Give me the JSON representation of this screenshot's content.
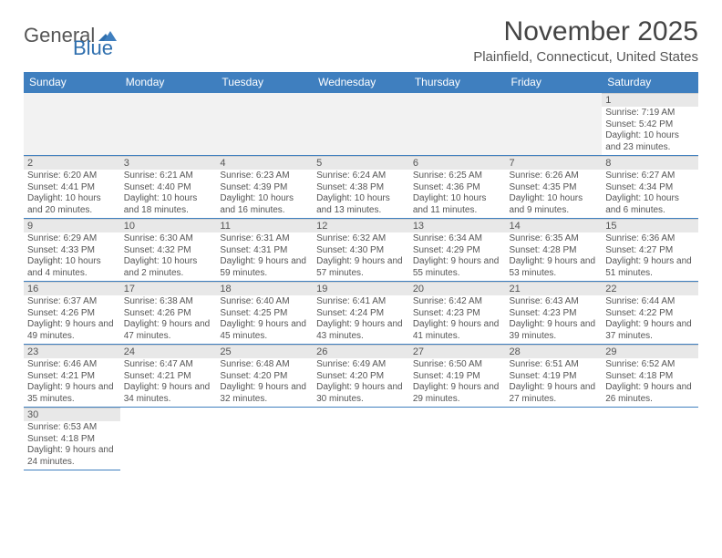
{
  "logo": {
    "text1": "General",
    "text2": "Blue"
  },
  "title": "November 2025",
  "location": "Plainfield, Connecticut, United States",
  "colors": {
    "header_bg": "#3f7fbf",
    "header_text": "#ffffff",
    "rule": "#3f7fbf",
    "daynum_bg": "#e8e8e8",
    "text": "#555555"
  },
  "day_names": [
    "Sunday",
    "Monday",
    "Tuesday",
    "Wednesday",
    "Thursday",
    "Friday",
    "Saturday"
  ],
  "weeks": [
    [
      null,
      null,
      null,
      null,
      null,
      null,
      {
        "n": "1",
        "sr": "Sunrise: 7:19 AM",
        "ss": "Sunset: 5:42 PM",
        "dl": "Daylight: 10 hours and 23 minutes."
      }
    ],
    [
      {
        "n": "2",
        "sr": "Sunrise: 6:20 AM",
        "ss": "Sunset: 4:41 PM",
        "dl": "Daylight: 10 hours and 20 minutes."
      },
      {
        "n": "3",
        "sr": "Sunrise: 6:21 AM",
        "ss": "Sunset: 4:40 PM",
        "dl": "Daylight: 10 hours and 18 minutes."
      },
      {
        "n": "4",
        "sr": "Sunrise: 6:23 AM",
        "ss": "Sunset: 4:39 PM",
        "dl": "Daylight: 10 hours and 16 minutes."
      },
      {
        "n": "5",
        "sr": "Sunrise: 6:24 AM",
        "ss": "Sunset: 4:38 PM",
        "dl": "Daylight: 10 hours and 13 minutes."
      },
      {
        "n": "6",
        "sr": "Sunrise: 6:25 AM",
        "ss": "Sunset: 4:36 PM",
        "dl": "Daylight: 10 hours and 11 minutes."
      },
      {
        "n": "7",
        "sr": "Sunrise: 6:26 AM",
        "ss": "Sunset: 4:35 PM",
        "dl": "Daylight: 10 hours and 9 minutes."
      },
      {
        "n": "8",
        "sr": "Sunrise: 6:27 AM",
        "ss": "Sunset: 4:34 PM",
        "dl": "Daylight: 10 hours and 6 minutes."
      }
    ],
    [
      {
        "n": "9",
        "sr": "Sunrise: 6:29 AM",
        "ss": "Sunset: 4:33 PM",
        "dl": "Daylight: 10 hours and 4 minutes."
      },
      {
        "n": "10",
        "sr": "Sunrise: 6:30 AM",
        "ss": "Sunset: 4:32 PM",
        "dl": "Daylight: 10 hours and 2 minutes."
      },
      {
        "n": "11",
        "sr": "Sunrise: 6:31 AM",
        "ss": "Sunset: 4:31 PM",
        "dl": "Daylight: 9 hours and 59 minutes."
      },
      {
        "n": "12",
        "sr": "Sunrise: 6:32 AM",
        "ss": "Sunset: 4:30 PM",
        "dl": "Daylight: 9 hours and 57 minutes."
      },
      {
        "n": "13",
        "sr": "Sunrise: 6:34 AM",
        "ss": "Sunset: 4:29 PM",
        "dl": "Daylight: 9 hours and 55 minutes."
      },
      {
        "n": "14",
        "sr": "Sunrise: 6:35 AM",
        "ss": "Sunset: 4:28 PM",
        "dl": "Daylight: 9 hours and 53 minutes."
      },
      {
        "n": "15",
        "sr": "Sunrise: 6:36 AM",
        "ss": "Sunset: 4:27 PM",
        "dl": "Daylight: 9 hours and 51 minutes."
      }
    ],
    [
      {
        "n": "16",
        "sr": "Sunrise: 6:37 AM",
        "ss": "Sunset: 4:26 PM",
        "dl": "Daylight: 9 hours and 49 minutes."
      },
      {
        "n": "17",
        "sr": "Sunrise: 6:38 AM",
        "ss": "Sunset: 4:26 PM",
        "dl": "Daylight: 9 hours and 47 minutes."
      },
      {
        "n": "18",
        "sr": "Sunrise: 6:40 AM",
        "ss": "Sunset: 4:25 PM",
        "dl": "Daylight: 9 hours and 45 minutes."
      },
      {
        "n": "19",
        "sr": "Sunrise: 6:41 AM",
        "ss": "Sunset: 4:24 PM",
        "dl": "Daylight: 9 hours and 43 minutes."
      },
      {
        "n": "20",
        "sr": "Sunrise: 6:42 AM",
        "ss": "Sunset: 4:23 PM",
        "dl": "Daylight: 9 hours and 41 minutes."
      },
      {
        "n": "21",
        "sr": "Sunrise: 6:43 AM",
        "ss": "Sunset: 4:23 PM",
        "dl": "Daylight: 9 hours and 39 minutes."
      },
      {
        "n": "22",
        "sr": "Sunrise: 6:44 AM",
        "ss": "Sunset: 4:22 PM",
        "dl": "Daylight: 9 hours and 37 minutes."
      }
    ],
    [
      {
        "n": "23",
        "sr": "Sunrise: 6:46 AM",
        "ss": "Sunset: 4:21 PM",
        "dl": "Daylight: 9 hours and 35 minutes."
      },
      {
        "n": "24",
        "sr": "Sunrise: 6:47 AM",
        "ss": "Sunset: 4:21 PM",
        "dl": "Daylight: 9 hours and 34 minutes."
      },
      {
        "n": "25",
        "sr": "Sunrise: 6:48 AM",
        "ss": "Sunset: 4:20 PM",
        "dl": "Daylight: 9 hours and 32 minutes."
      },
      {
        "n": "26",
        "sr": "Sunrise: 6:49 AM",
        "ss": "Sunset: 4:20 PM",
        "dl": "Daylight: 9 hours and 30 minutes."
      },
      {
        "n": "27",
        "sr": "Sunrise: 6:50 AM",
        "ss": "Sunset: 4:19 PM",
        "dl": "Daylight: 9 hours and 29 minutes."
      },
      {
        "n": "28",
        "sr": "Sunrise: 6:51 AM",
        "ss": "Sunset: 4:19 PM",
        "dl": "Daylight: 9 hours and 27 minutes."
      },
      {
        "n": "29",
        "sr": "Sunrise: 6:52 AM",
        "ss": "Sunset: 4:18 PM",
        "dl": "Daylight: 9 hours and 26 minutes."
      }
    ],
    [
      {
        "n": "30",
        "sr": "Sunrise: 6:53 AM",
        "ss": "Sunset: 4:18 PM",
        "dl": "Daylight: 9 hours and 24 minutes."
      },
      null,
      null,
      null,
      null,
      null,
      null
    ]
  ]
}
